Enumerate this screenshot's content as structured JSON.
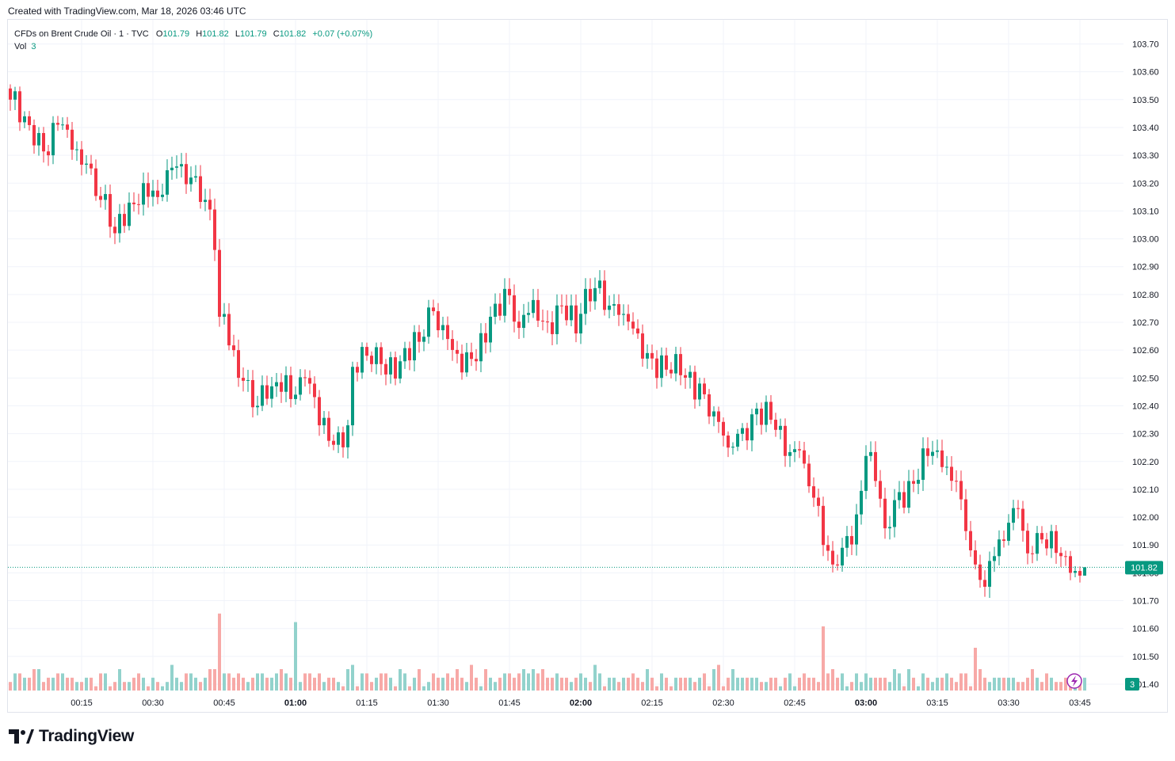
{
  "caption": "Created with TradingView.com, Mar 18, 2026 03:46 UTC",
  "legend": {
    "symbol": "CFDs on Brent Crude Oil · 1 · TVC",
    "open_label": "O",
    "open": "101.79",
    "high_label": "H",
    "high": "101.82",
    "low_label": "L",
    "low": "101.79",
    "close_label": "C",
    "close": "101.82",
    "change": "+0.07 (+0.07%)",
    "vol_label": "Vol",
    "vol_value": "3"
  },
  "brand": {
    "name": "TradingView"
  },
  "colors": {
    "up": "#089981",
    "down": "#f23645",
    "vol_up": "#92d2cc",
    "vol_down": "#f7a9a7",
    "grid": "#f0f3fa",
    "last_line": "#089981"
  },
  "chart_data": {
    "type": "candlestick",
    "title": "CFDs on Brent Crude Oil · 1 · TVC",
    "interval": "1 minute",
    "ylim": [
      101.38,
      103.76
    ],
    "y_ticks": [
      "103.70",
      "103.60",
      "103.50",
      "103.40",
      "103.30",
      "103.20",
      "103.10",
      "103.00",
      "102.90",
      "102.80",
      "102.70",
      "102.60",
      "102.50",
      "102.40",
      "102.30",
      "102.20",
      "102.10",
      "102.00",
      "101.90",
      "101.80",
      "101.70",
      "101.60",
      "101.50",
      "101.40"
    ],
    "x_ticks": [
      {
        "label": "00:15",
        "bold": false,
        "minute": 15
      },
      {
        "label": "00:30",
        "bold": false,
        "minute": 30
      },
      {
        "label": "00:45",
        "bold": false,
        "minute": 45
      },
      {
        "label": "01:00",
        "bold": true,
        "minute": 60
      },
      {
        "label": "01:15",
        "bold": false,
        "minute": 75
      },
      {
        "label": "01:30",
        "bold": false,
        "minute": 90
      },
      {
        "label": "01:45",
        "bold": false,
        "minute": 105
      },
      {
        "label": "02:00",
        "bold": true,
        "minute": 120
      },
      {
        "label": "02:15",
        "bold": false,
        "minute": 135
      },
      {
        "label": "02:30",
        "bold": false,
        "minute": 150
      },
      {
        "label": "02:45",
        "bold": false,
        "minute": 165
      },
      {
        "label": "03:00",
        "bold": true,
        "minute": 180
      },
      {
        "label": "03:15",
        "bold": false,
        "minute": 195
      },
      {
        "label": "03:30",
        "bold": false,
        "minute": 210
      },
      {
        "label": "03:45",
        "bold": false,
        "minute": 225
      }
    ],
    "last_price": "101.82",
    "last_volume": "3",
    "anchors": [
      [
        0,
        103.5,
        2
      ],
      [
        3,
        103.44,
        3
      ],
      [
        6,
        103.38,
        5
      ],
      [
        8,
        103.3,
        3
      ],
      [
        10,
        103.41,
        4
      ],
      [
        13,
        103.32,
        3
      ],
      [
        16,
        103.27,
        3
      ],
      [
        19,
        103.14,
        4
      ],
      [
        22,
        103.02,
        2
      ],
      [
        25,
        103.13,
        2
      ],
      [
        28,
        103.2,
        3
      ],
      [
        31,
        103.15,
        2
      ],
      [
        35,
        103.26,
        3
      ],
      [
        38,
        103.22,
        4
      ],
      [
        41,
        103.14,
        3
      ],
      [
        43,
        102.96,
        5
      ],
      [
        44,
        102.72,
        18
      ],
      [
        45,
        102.73,
        4
      ],
      [
        47,
        102.6,
        3
      ],
      [
        49,
        102.49,
        3
      ],
      [
        52,
        102.4,
        4
      ],
      [
        55,
        102.47,
        3
      ],
      [
        58,
        102.51,
        4
      ],
      [
        60,
        102.44,
        16
      ],
      [
        62,
        102.5,
        4
      ],
      [
        65,
        102.33,
        4
      ],
      [
        68,
        102.26,
        3
      ],
      [
        71,
        102.33,
        5
      ],
      [
        72,
        102.54,
        6
      ],
      [
        75,
        102.58,
        4
      ],
      [
        78,
        102.55,
        4
      ],
      [
        82,
        102.56,
        5
      ],
      [
        86,
        102.63,
        5
      ],
      [
        89,
        102.74,
        4
      ],
      [
        92,
        102.64,
        4
      ],
      [
        95,
        102.52,
        3
      ],
      [
        98,
        102.56,
        3
      ],
      [
        101,
        102.72,
        3
      ],
      [
        104,
        102.82,
        4
      ],
      [
        107,
        102.68,
        4
      ],
      [
        110,
        102.78,
        5
      ],
      [
        113,
        102.7,
        3
      ],
      [
        116,
        102.76,
        3
      ],
      [
        119,
        102.66,
        3
      ],
      [
        121,
        102.82,
        3
      ],
      [
        124,
        102.85,
        4
      ],
      [
        126,
        102.76,
        3
      ],
      [
        129,
        102.73,
        3
      ],
      [
        132,
        102.66,
        3
      ],
      [
        135,
        102.57,
        3
      ],
      [
        138,
        102.53,
        3
      ],
      [
        141,
        102.51,
        3
      ],
      [
        145,
        102.48,
        3
      ],
      [
        148,
        102.38,
        5
      ],
      [
        151,
        102.25,
        3
      ],
      [
        154,
        102.32,
        3
      ],
      [
        157,
        102.39,
        3
      ],
      [
        160,
        102.35,
        3
      ],
      [
        163,
        102.22,
        3
      ],
      [
        166,
        102.24,
        3
      ],
      [
        169,
        102.07,
        3
      ],
      [
        171,
        101.9,
        15
      ],
      [
        173,
        101.83,
        5
      ],
      [
        175,
        101.89,
        4
      ],
      [
        178,
        102.01,
        4
      ],
      [
        180,
        102.22,
        4
      ],
      [
        182,
        102.13,
        3
      ],
      [
        184,
        101.96,
        3
      ],
      [
        187,
        102.09,
        4
      ],
      [
        190,
        102.12,
        3
      ],
      [
        193,
        102.22,
        3
      ],
      [
        196,
        102.18,
        3
      ],
      [
        199,
        102.13,
        2
      ],
      [
        201,
        101.95,
        4
      ],
      [
        203,
        101.83,
        10
      ],
      [
        205,
        101.75,
        3
      ],
      [
        207,
        101.86,
        3
      ],
      [
        210,
        101.98,
        3
      ],
      [
        212,
        102.03,
        2
      ],
      [
        214,
        101.87,
        3
      ],
      [
        217,
        101.92,
        2
      ],
      [
        219,
        101.95,
        3
      ],
      [
        221,
        101.86,
        2
      ],
      [
        223,
        101.8,
        2
      ],
      [
        225,
        101.79,
        2
      ],
      [
        226,
        101.82,
        3
      ]
    ]
  }
}
